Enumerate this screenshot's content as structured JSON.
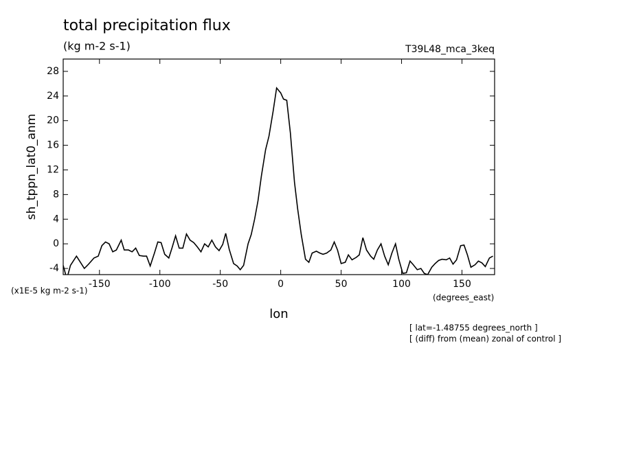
{
  "chart_data": {
    "type": "line",
    "title": "total precipitation flux",
    "subtitle": "(kg m-2 s-1)",
    "dataset": "T39L48_mca_3keq",
    "ylabel": "sh_tppn_lat0_anm",
    "xlabel": "lon",
    "yunits": "(x1E-5 kg m-2 s-1)",
    "xunits": "(degrees_east)",
    "annotations": [
      "[ lat=-1.48755 degrees_north ]",
      "[ (diff) from (mean) zonal of control ]"
    ],
    "color": "#000000",
    "grid": false,
    "xlim": [
      -180,
      177
    ],
    "ylim": [
      -5,
      30
    ],
    "xticks": [
      -150,
      -100,
      -50,
      0,
      50,
      100,
      150
    ],
    "yticks": [
      -4,
      0,
      4,
      8,
      12,
      16,
      20,
      24,
      28
    ],
    "x": [
      -180,
      -177,
      -174,
      -169,
      -162.5,
      -159,
      -154.5,
      -151,
      -148,
      -145,
      -142,
      -139,
      -136,
      -132,
      -129.5,
      -126,
      -123,
      -120,
      -117,
      -113.6,
      -111,
      -108,
      -104.5,
      -101.7,
      -99,
      -96,
      -92.6,
      -90,
      -87,
      -84,
      -81,
      -78,
      -75,
      -72,
      -69,
      -66,
      -63,
      -60,
      -57,
      -54,
      -51,
      -48,
      -45.5,
      -42.6,
      -39,
      -36,
      -33.5,
      -30.7,
      -27,
      -24.4,
      -21.6,
      -18.8,
      -16,
      -12.5,
      -9.7,
      -6.3,
      -3.4,
      0,
      2.3,
      5,
      8,
      11.4,
      14,
      17,
      20.5,
      23.3,
      26,
      29.5,
      32.4,
      35,
      38,
      41.5,
      44.3,
      47,
      50,
      53.4,
      56,
      59,
      62.5,
      65,
      68,
      71,
      74.4,
      77,
      80,
      83,
      86,
      89,
      92,
      95,
      97.7,
      101,
      104,
      107,
      109.7,
      113,
      116,
      118.8,
      121.6,
      125,
      127.8,
      130.7,
      133.5,
      137,
      139.8,
      142.6,
      145.5,
      148.9,
      151.7,
      154.5,
      157.4,
      160.8,
      163.6,
      166.5,
      169.3,
      172.7,
      175.6
    ],
    "values": [
      -3.5,
      -5.7,
      -3.5,
      -2,
      -4,
      -3.3,
      -2.3,
      -2,
      -0.3,
      0.3,
      0,
      -1.3,
      -1,
      0.6,
      -1,
      -1,
      -1.3,
      -0.7,
      -1.9,
      -2,
      -2,
      -3.6,
      -1.5,
      0.3,
      0.2,
      -1.7,
      -2.3,
      -0.7,
      1.3,
      -0.7,
      -0.7,
      1.6,
      0.6,
      0.2,
      -0.5,
      -1.3,
      0,
      -0.5,
      0.6,
      -0.5,
      -1.1,
      -0.1,
      1.7,
      -0.9,
      -3.2,
      -3.6,
      -4.2,
      -3.5,
      0,
      1.5,
      4,
      7,
      11,
      15.3,
      17.5,
      21.5,
      25.3,
      24.5,
      23.5,
      23.3,
      18,
      10,
      5.7,
      1.5,
      -2.5,
      -3,
      -1.5,
      -1.2,
      -1.5,
      -1.7,
      -1.5,
      -1,
      0.3,
      -1,
      -3.2,
      -3,
      -1.8,
      -2.6,
      -2.2,
      -1.8,
      1,
      -1,
      -2,
      -2.5,
      -1,
      0,
      -2,
      -3.4,
      -1.5,
      0,
      -2.5,
      -4.8,
      -4.7,
      -2.8,
      -3.4,
      -4.2,
      -4,
      -4.8,
      -5,
      -3.8,
      -3.2,
      -2.7,
      -2.5,
      -2.6,
      -2.3,
      -3.3,
      -2.6,
      -0.3,
      -0.2,
      -1.8,
      -3.8,
      -3.4,
      -2.8,
      -3.1,
      -3.7,
      -2.3,
      -2
    ]
  }
}
